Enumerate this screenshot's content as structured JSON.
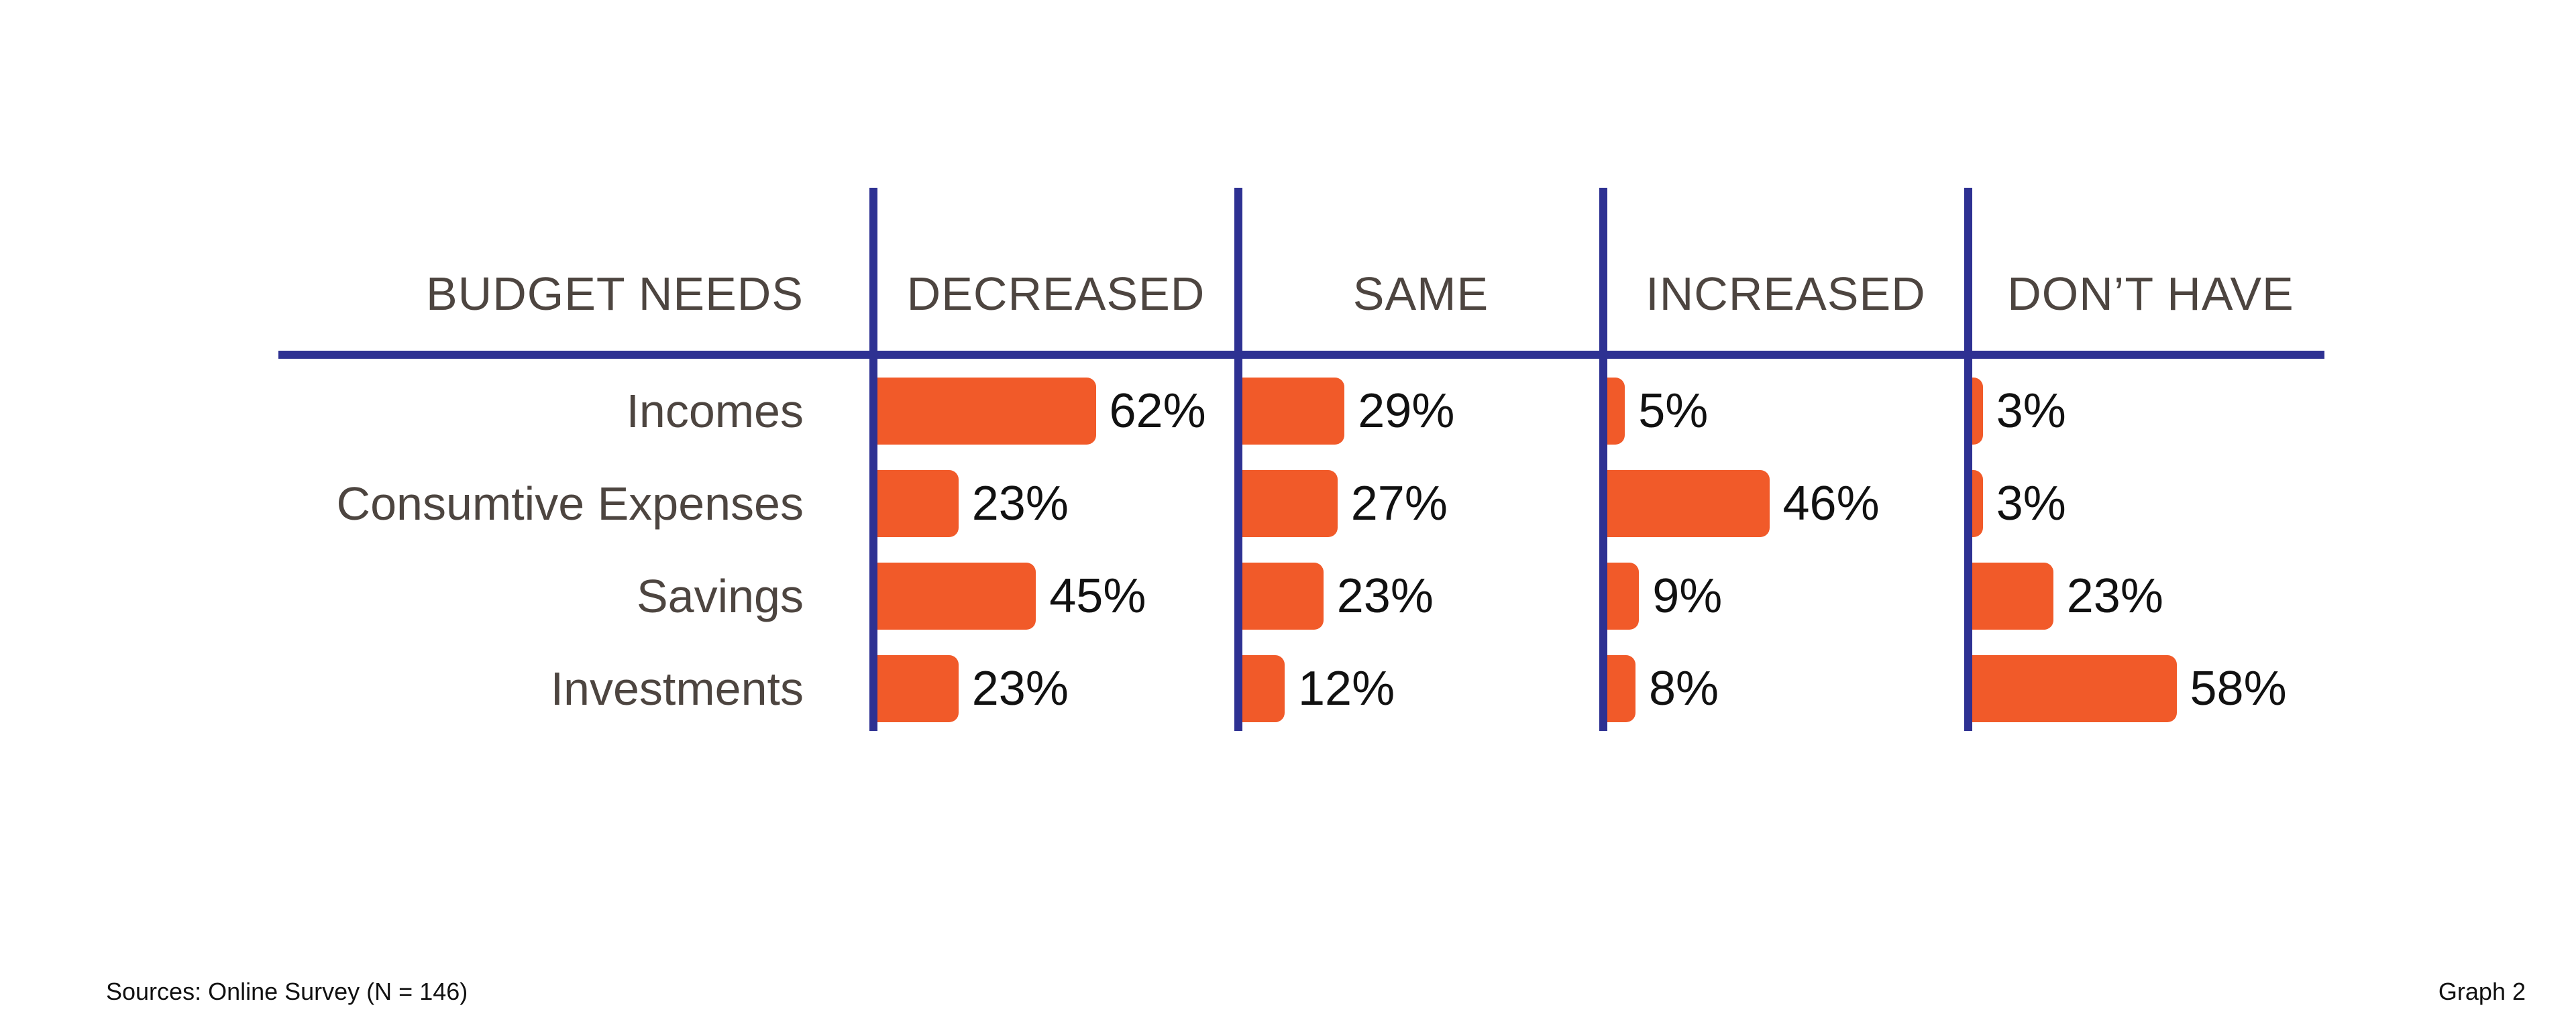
{
  "chart_data": {
    "type": "bar",
    "title": "",
    "row_header": "BUDGET NEEDS",
    "columns": [
      "DECREASED",
      "SAME",
      "INCREASED",
      "DON’T HAVE"
    ],
    "categories": [
      "Incomes",
      "Consumtive Expenses",
      "Savings",
      "Investments"
    ],
    "series": [
      {
        "name": "DECREASED",
        "values": [
          62,
          23,
          45,
          23
        ]
      },
      {
        "name": "SAME",
        "values": [
          29,
          27,
          23,
          12
        ]
      },
      {
        "name": "INCREASED",
        "values": [
          5,
          46,
          9,
          8
        ]
      },
      {
        "name": "DON’T HAVE",
        "values": [
          3,
          3,
          23,
          58
        ]
      }
    ],
    "value_suffix": "%",
    "xlim": [
      0,
      100
    ],
    "colors": {
      "bar": "#f15a29",
      "rule": "#2e3192",
      "header_text": "#4d4540",
      "value_text": "#111111"
    }
  },
  "footer": {
    "source": "Sources: Online Survey (N = 146)",
    "graph_label": "Graph 2"
  }
}
